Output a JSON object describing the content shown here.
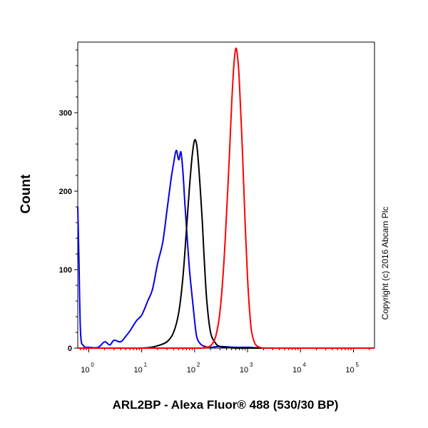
{
  "chart_data": {
    "type": "line",
    "title": "",
    "xlabel": "ARL2BP - Alexa Fluor® 488 (530/30 BP)",
    "ylabel": "Count",
    "x_scale": "log",
    "xlim": [
      0.62,
      250000
    ],
    "ylim": [
      0,
      390
    ],
    "x_ticks": [
      {
        "base": "10",
        "exp": "0",
        "value": 1
      },
      {
        "base": "10",
        "exp": "1",
        "value": 10
      },
      {
        "base": "10",
        "exp": "2",
        "value": 100
      },
      {
        "base": "10",
        "exp": "3",
        "value": 1000
      },
      {
        "base": "10",
        "exp": "4",
        "value": 10000
      },
      {
        "base": "10",
        "exp": "5",
        "value": 100000
      }
    ],
    "y_ticks": [
      {
        "label": "0",
        "value": 0
      },
      {
        "label": "100",
        "value": 100
      },
      {
        "label": "200",
        "value": 200
      },
      {
        "label": "300",
        "value": 300
      }
    ],
    "annotation": "Copyright (c) 2016 Abcam Plc",
    "series": [
      {
        "color": "#0000ee",
        "x": [
          0.62,
          0.65,
          0.7,
          0.8,
          1,
          1.5,
          2,
          2.5,
          3,
          4,
          5,
          6,
          8,
          10,
          13,
          16,
          20,
          25,
          30,
          35,
          40,
          45,
          50,
          55,
          60,
          65,
          70,
          80,
          90,
          100,
          110,
          130,
          160,
          200,
          300,
          600,
          1000,
          3000,
          250000
        ],
        "y": [
          180,
          120,
          20,
          3,
          1,
          1,
          8,
          4,
          10,
          8,
          15,
          22,
          35,
          42,
          60,
          75,
          108,
          135,
          175,
          210,
          235,
          252,
          240,
          250,
          225,
          188,
          155,
          100,
          65,
          35,
          14,
          5,
          2,
          1,
          2,
          1,
          1,
          0,
          0
        ]
      },
      {
        "color": "#000000",
        "x": [
          0.62,
          8,
          15,
          20,
          30,
          40,
          50,
          60,
          70,
          80,
          90,
          100,
          110,
          120,
          130,
          140,
          150,
          170,
          200,
          250,
          300,
          400,
          600,
          1000,
          250000
        ],
        "y": [
          0,
          0,
          1,
          3,
          8,
          20,
          45,
          90,
          150,
          205,
          245,
          265,
          258,
          230,
          195,
          160,
          120,
          60,
          20,
          6,
          2,
          1,
          0,
          0,
          0
        ]
      },
      {
        "color": "#ff0000",
        "x": [
          0.62,
          100,
          150,
          200,
          250,
          300,
          350,
          400,
          450,
          500,
          550,
          600,
          650,
          700,
          800,
          900,
          1000,
          1100,
          1200,
          1400,
          1700,
          2000,
          3000,
          250000
        ],
        "y": [
          0,
          0,
          1,
          3,
          15,
          45,
          100,
          170,
          240,
          310,
          360,
          382,
          370,
          340,
          250,
          160,
          90,
          45,
          20,
          5,
          1,
          0,
          0,
          0
        ]
      }
    ]
  }
}
